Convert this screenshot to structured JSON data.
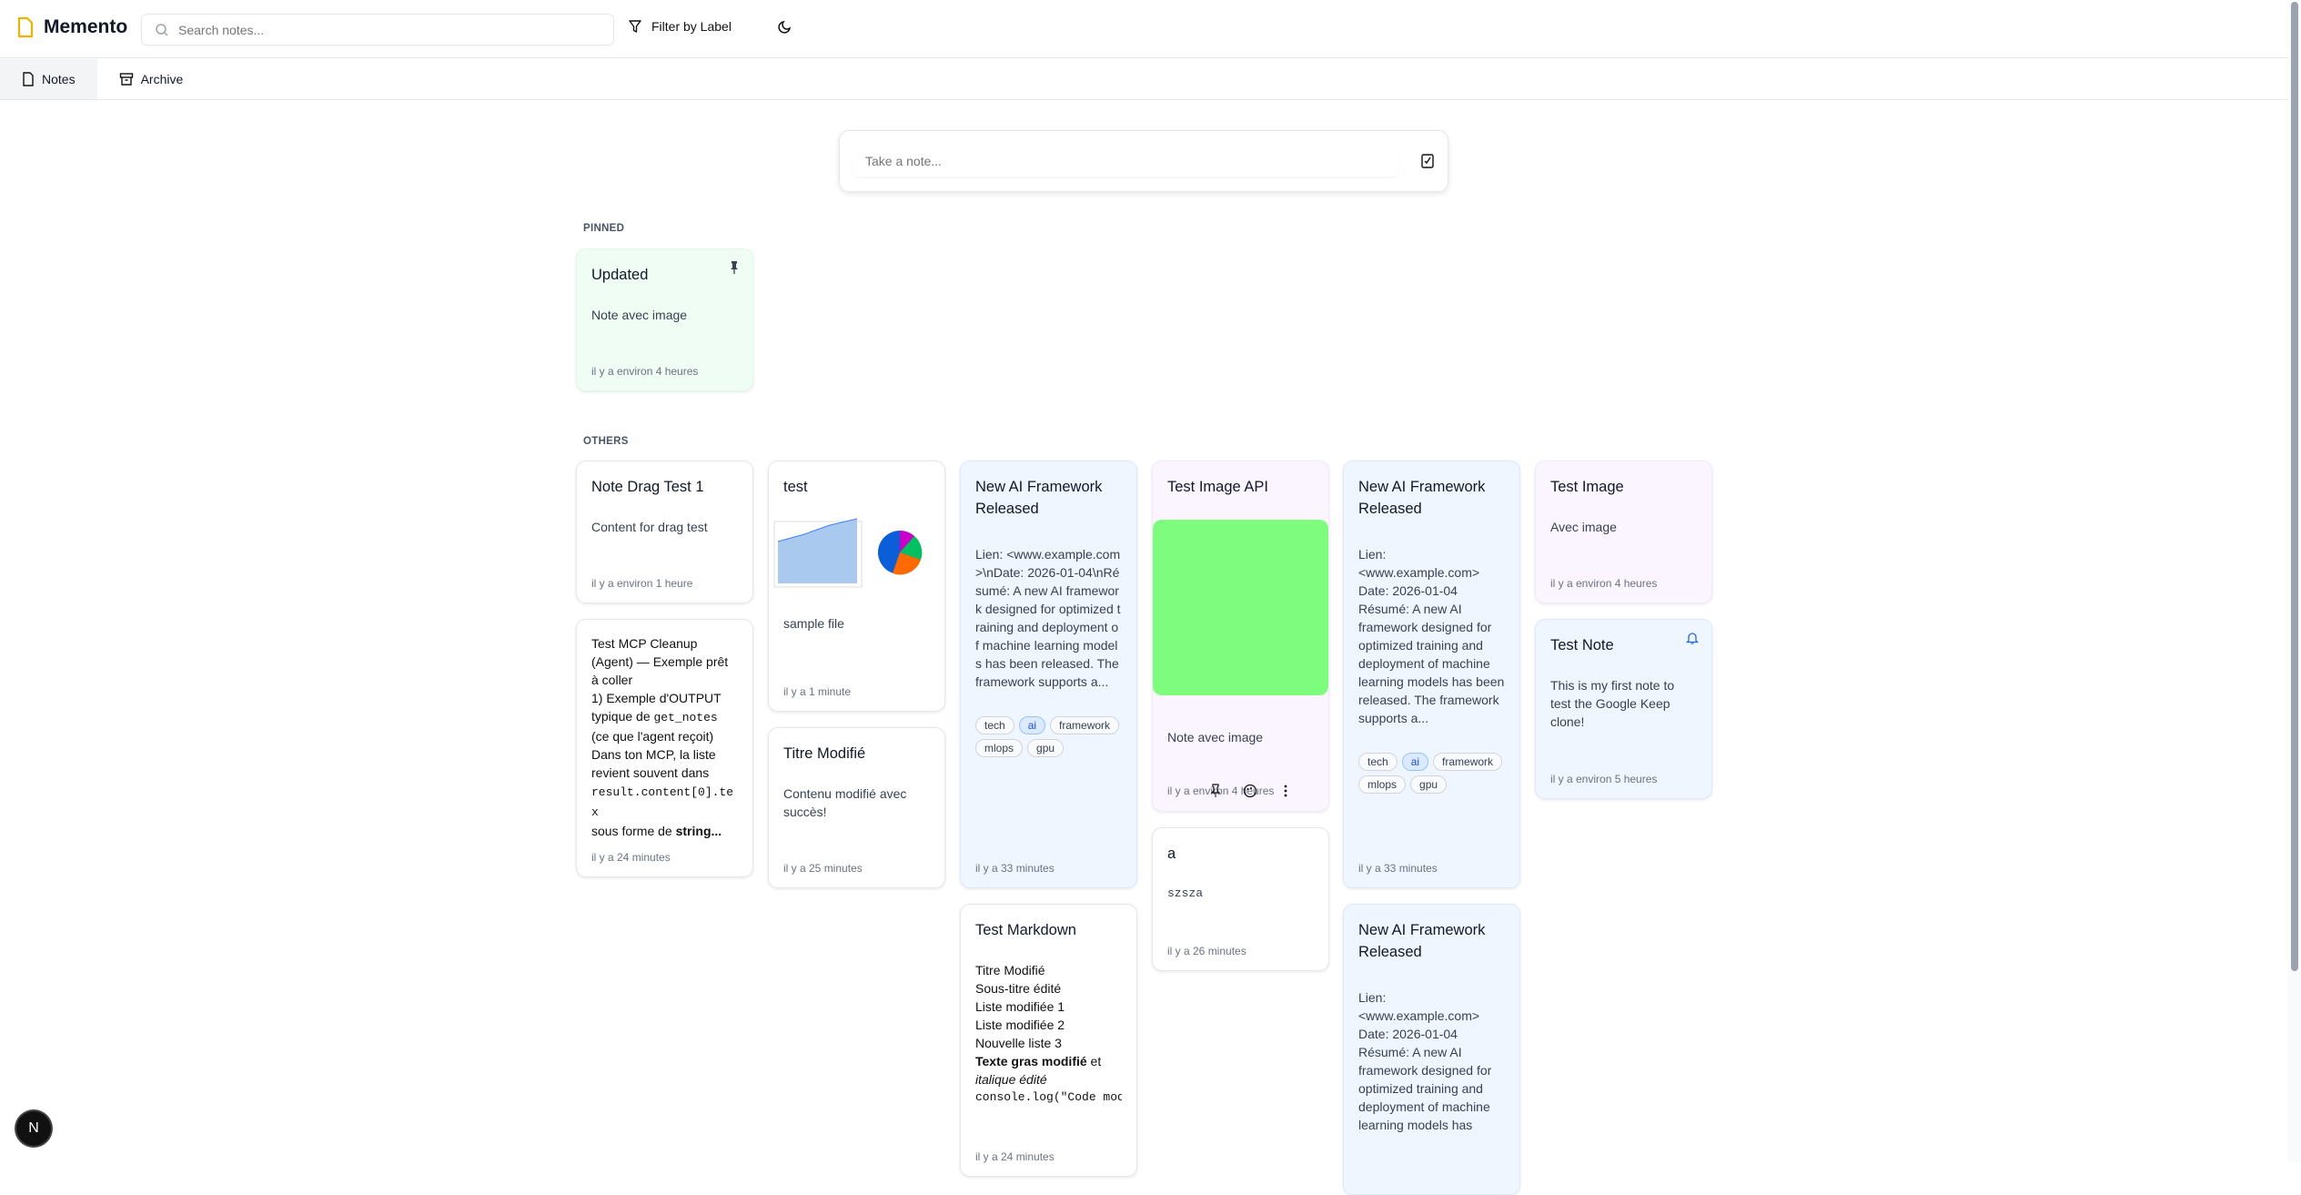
{
  "app": {
    "title": "Memento",
    "search_placeholder": "Search notes...",
    "filter_label": "Filter by Label",
    "brand_color": "#eab308"
  },
  "tabs": [
    {
      "label": "Notes",
      "active": true
    },
    {
      "label": "Archive",
      "active": false
    }
  ],
  "composer": {
    "placeholder": "Take a note..."
  },
  "sections": {
    "pinned": "PINNED",
    "others": "OTHERS"
  },
  "pinned": [
    {
      "title": "Updated",
      "body": "Note avec image",
      "time": "il y a environ 4 heures",
      "color": "#f0fdf4"
    }
  ],
  "notes": {
    "drag": {
      "title": "Note Drag Test 1",
      "body": "Content for drag test",
      "time": "il y a environ 1 heure"
    },
    "mcp": {
      "title_text": "Test MCP Cleanup (Agent) — Exemple prêt à coller",
      "line1": "1) Exemple d'OUTPUT typique de ",
      "code1": "get_notes",
      "line2": "(ce que l'agent reçoit) Dans ton MCP, la liste revient souvent dans",
      "code2": "result.content[0].tex",
      "line3": "sous forme de ",
      "bold": "string...",
      "time": "il y a 24 minutes"
    },
    "test": {
      "title": "test",
      "body": "sample file",
      "time": "il y a 1 minute"
    },
    "titre": {
      "title": "Titre Modifié",
      "body": "Contenu modifié avec succès!",
      "time": "il y a 25 minutes"
    },
    "ai1": {
      "title": "New AI Framework Released",
      "body": "Lien: <www.example.com>\\nDate: 2026-01-04\\nRésumé: A new AI framework designed for optimized training and deployment of machine learning models has been released. The framework supports a...",
      "time": "il y a 33 minutes",
      "tags": [
        "tech",
        "ai",
        "framework",
        "mlops",
        "gpu"
      ]
    },
    "markdown": {
      "title": "Test Markdown",
      "lines": [
        "Titre Modifié",
        "Sous-titre édité",
        "Liste modifiée 1",
        "Liste modifiée 2",
        "Nouvelle liste 3"
      ],
      "bold": "Texte gras modifié",
      "after_bold": " et",
      "italic": "italique édité",
      "code": "console.log(\"Code mod",
      "time": "il y a 24 minutes"
    },
    "imageapi": {
      "title": "Test Image API",
      "body": "Note avec image",
      "time": "il y a environ 4 heures",
      "image_color": "#7efc7e"
    },
    "a": {
      "title": "a",
      "body": "szsza",
      "time": "il y a 26 minutes"
    },
    "ai2": {
      "title": "New AI Framework Released",
      "body": "Lien:\n<www.example.com>\nDate: 2026-01-04\nRésumé: A new AI framework designed for optimized training and deployment of machine learning models has been released. The framework supports a...",
      "time": "il y a 33 minutes",
      "tags": [
        "tech",
        "ai",
        "framework",
        "mlops",
        "gpu"
      ]
    },
    "ai3": {
      "title": "New AI Framework Released",
      "body": "Lien:\n<www.example.com>\nDate: 2026-01-04\nRésumé: A new AI framework designed for optimized training and deployment of machine learning models has"
    },
    "testimage": {
      "title": "Test Image",
      "body": "Avec image",
      "time": "il y a environ 4 heures"
    },
    "testnote": {
      "title": "Test Note",
      "body": "This is my first note to test the Google Keep clone!",
      "time": "il y a environ 5 heures"
    }
  },
  "dev_badge": "N"
}
